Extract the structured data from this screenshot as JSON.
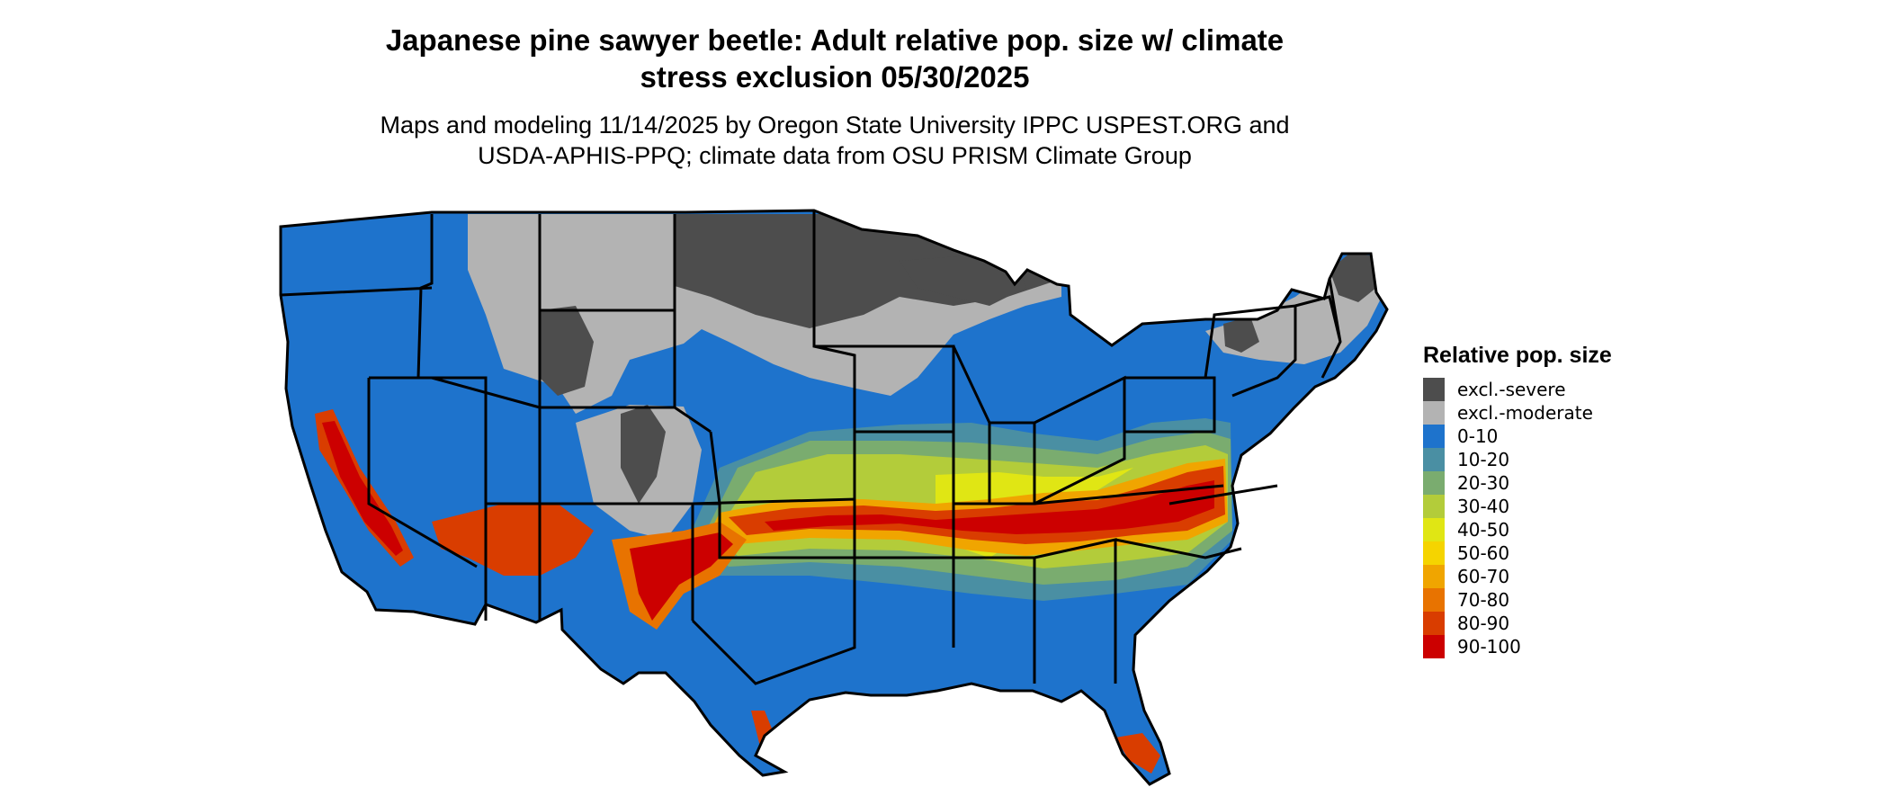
{
  "title_line1": "Japanese pine sawyer beetle: Adult relative pop. size w/ climate",
  "title_line2": "stress exclusion 05/30/2025",
  "subtitle_line1": "Maps and modeling 11/14/2025 by Oregon State University IPPC USPEST.ORG and",
  "subtitle_line2": "USDA-APHIS-PPQ; climate data from OSU PRISM Climate Group",
  "legend": {
    "title": "Relative pop. size",
    "items": [
      {
        "label": "excl.-severe",
        "color": "#4d4d4d"
      },
      {
        "label": "excl.-moderate",
        "color": "#b3b3b3"
      },
      {
        "label": "0-10",
        "color": "#1e73cc"
      },
      {
        "label": "10-20",
        "color": "#4a8fa3"
      },
      {
        "label": "20-30",
        "color": "#7aac6f"
      },
      {
        "label": "30-40",
        "color": "#b3cc3a"
      },
      {
        "label": "40-50",
        "color": "#e0e614"
      },
      {
        "label": "50-60",
        "color": "#f5d400"
      },
      {
        "label": "60-70",
        "color": "#f0a500"
      },
      {
        "label": "70-80",
        "color": "#e87300"
      },
      {
        "label": "80-90",
        "color": "#d93d00"
      },
      {
        "label": "90-100",
        "color": "#cc0000"
      }
    ]
  }
}
